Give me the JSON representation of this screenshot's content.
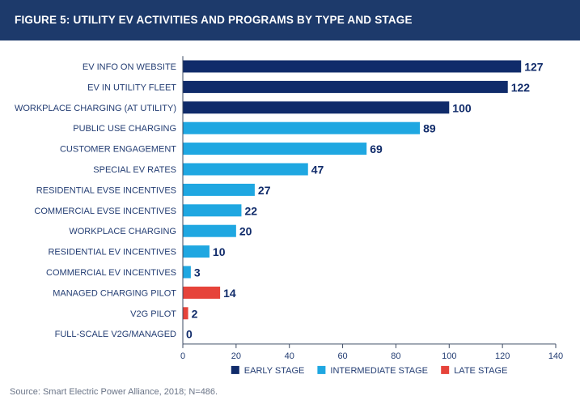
{
  "header": {
    "title": "FIGURE 5: UTILITY EV ACTIVITIES AND PROGRAMS BY TYPE AND STAGE"
  },
  "colors": {
    "header_bg": "#1d3a6b",
    "early": "#102b6a",
    "intermediate": "#1fa7e1",
    "late": "#e6433a",
    "label_text": "#233d73",
    "axis": "#3b4a63"
  },
  "chart_data": {
    "type": "bar",
    "orientation": "horizontal",
    "categories": [
      "EV INFO ON WEBSITE",
      "EV IN UTILITY FLEET",
      "WORKPLACE CHARGING (AT UTILITY)",
      "PUBLIC USE CHARGING",
      "CUSTOMER ENGAGEMENT",
      "SPECIAL EV RATES",
      "RESIDENTIAL EVSE INCENTIVES",
      "COMMERCIAL EVSE INCENTIVES",
      "WORKPLACE CHARGING",
      "RESIDENTIAL EV INCENTIVES",
      "COMMERCIAL EV INCENTIVES",
      "MANAGED CHARGING PILOT",
      "V2G PILOT",
      "FULL-SCALE V2G/MANAGED"
    ],
    "values": [
      127,
      122,
      100,
      89,
      69,
      47,
      27,
      22,
      20,
      10,
      3,
      14,
      2,
      0
    ],
    "stages": [
      "early",
      "early",
      "early",
      "intermediate",
      "intermediate",
      "intermediate",
      "intermediate",
      "intermediate",
      "intermediate",
      "intermediate",
      "intermediate",
      "late",
      "late",
      "late"
    ],
    "xlim": [
      0,
      140
    ],
    "xticks": [
      0,
      20,
      40,
      60,
      80,
      100,
      120,
      140
    ],
    "legend": [
      {
        "key": "early",
        "label": "EARLY STAGE"
      },
      {
        "key": "intermediate",
        "label": "INTERMEDIATE STAGE"
      },
      {
        "key": "late",
        "label": "LATE STAGE"
      }
    ],
    "legend_position": "bottom",
    "grid": false
  },
  "footer": {
    "source": "Source: Smart Electric Power Alliance, 2018; N=486."
  }
}
